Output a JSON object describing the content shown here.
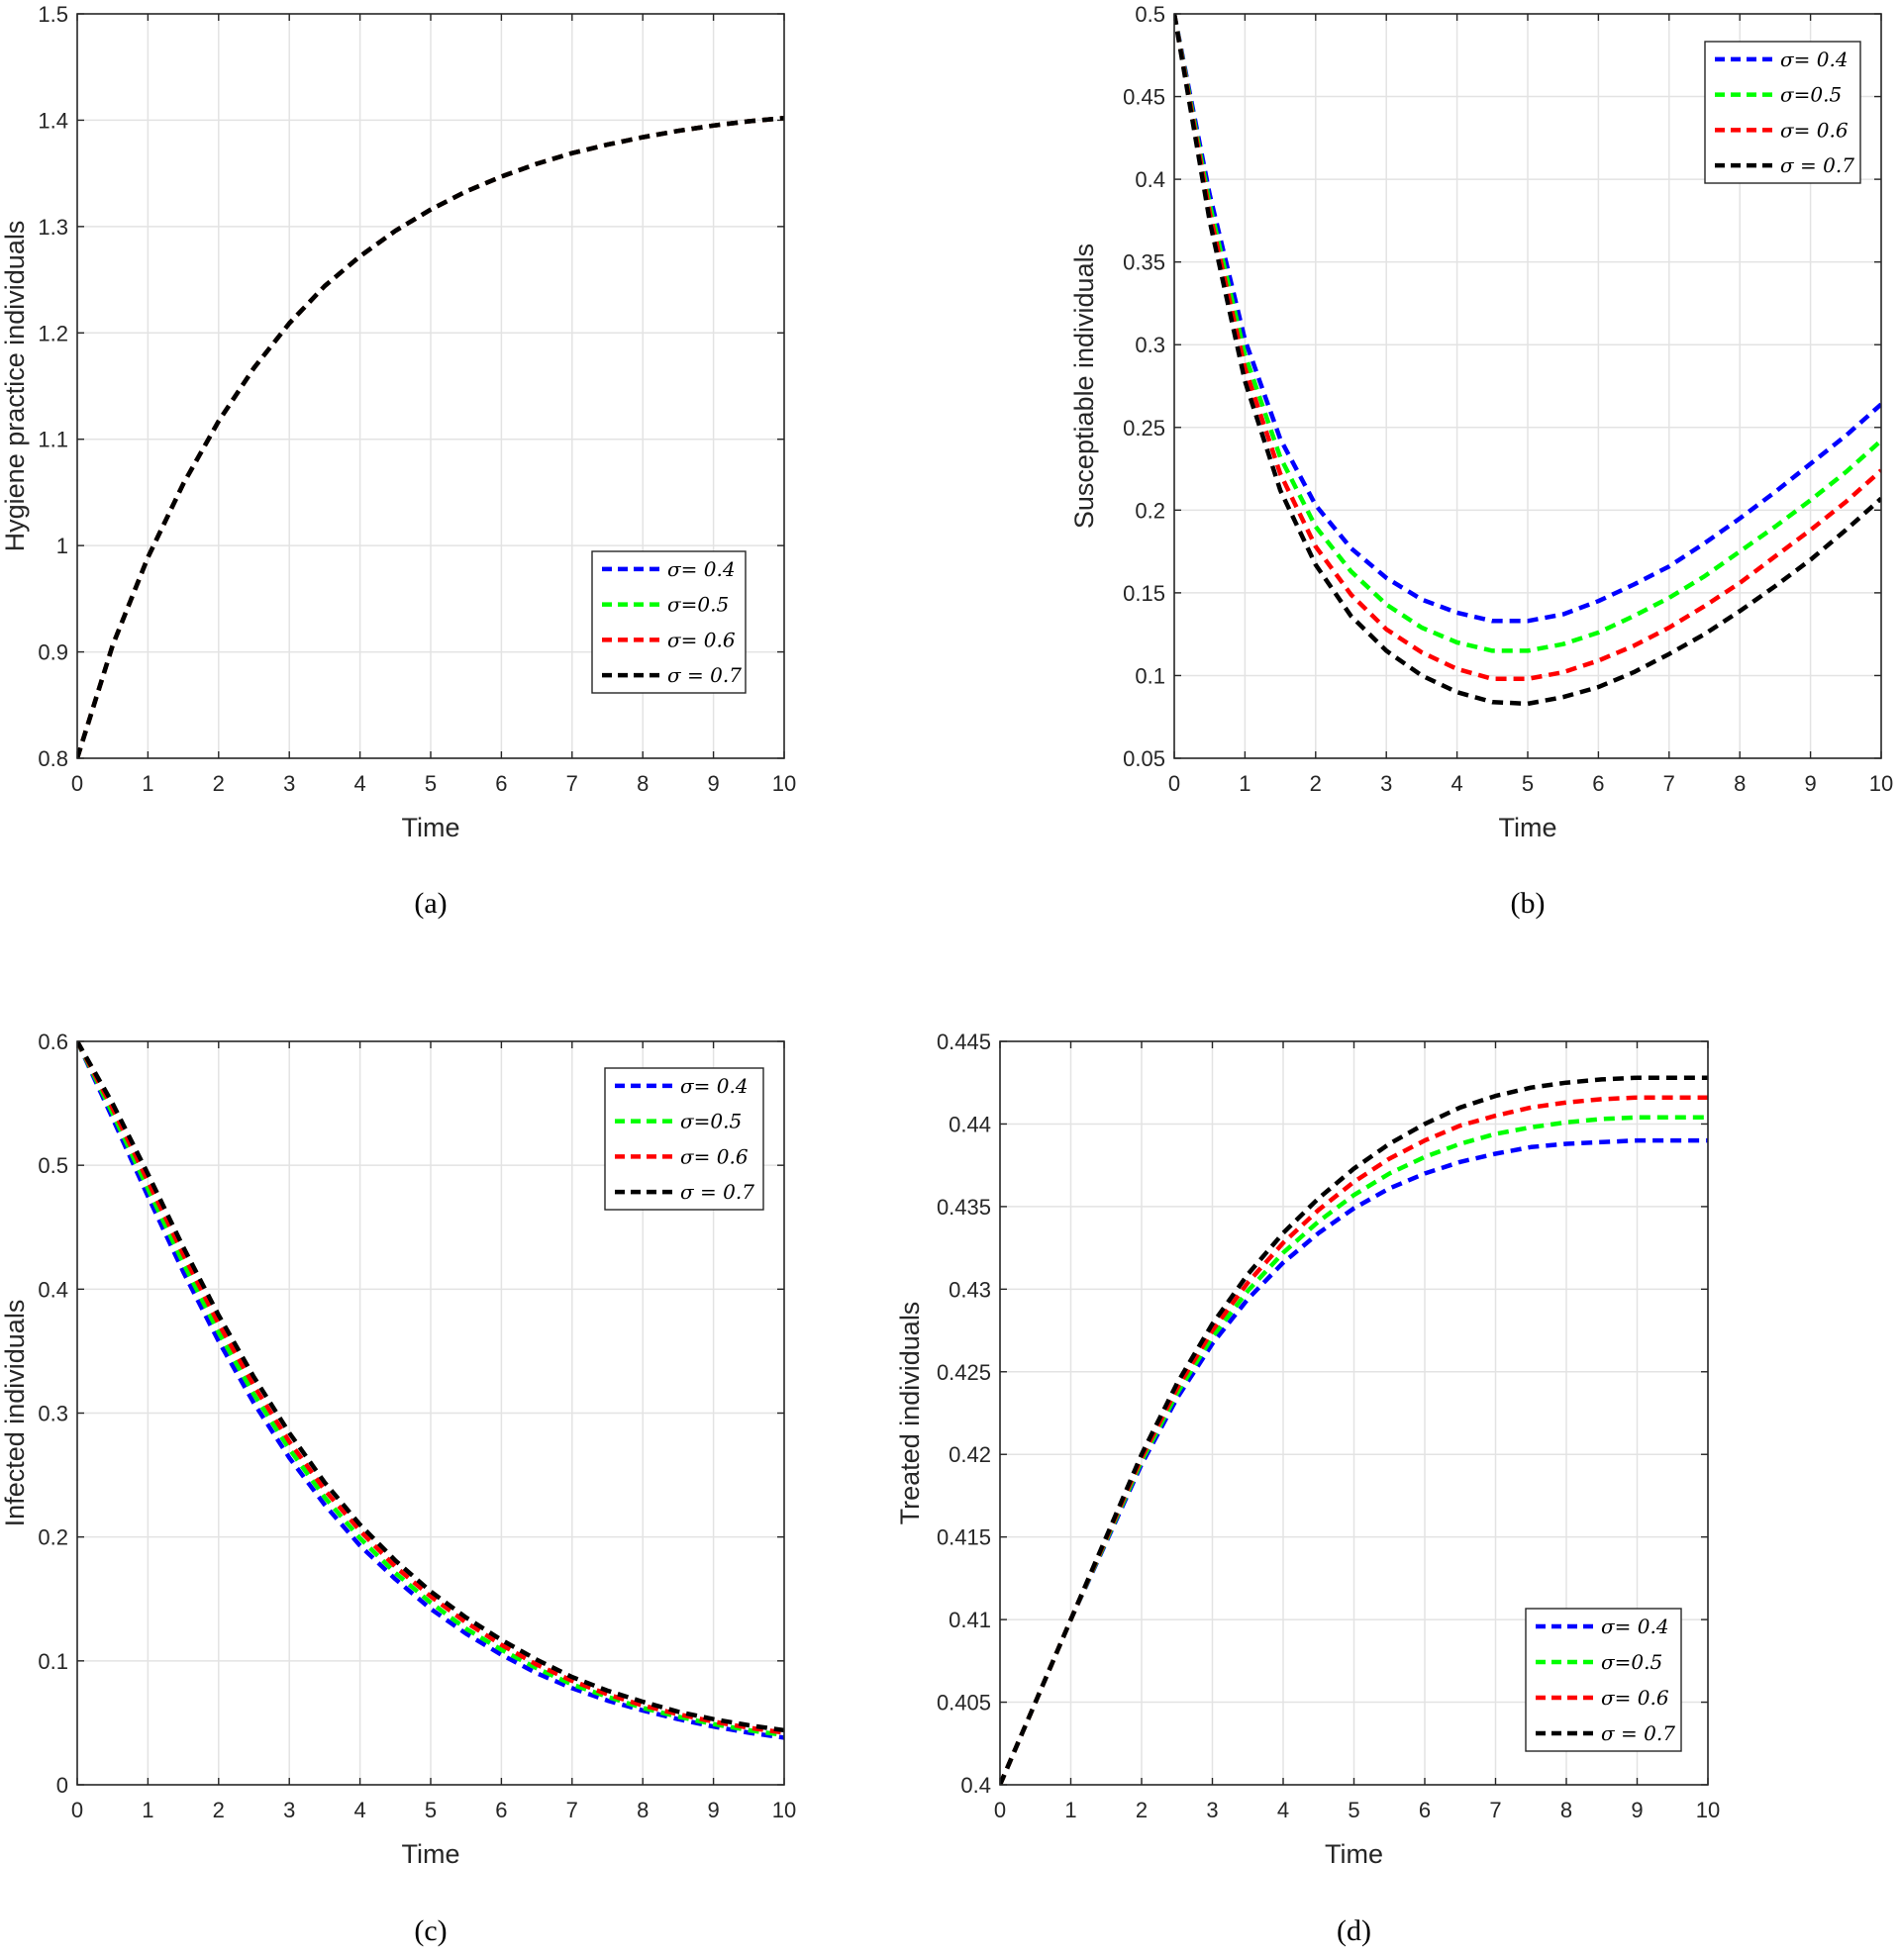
{
  "chart_data": [
    {
      "panel": "a",
      "type": "line",
      "caption": "(a)",
      "xlabel": "Time",
      "ylabel": "Hygiene practice individuals",
      "xlim": [
        0,
        10
      ],
      "ylim": [
        0.8,
        1.5
      ],
      "xticks": [
        "0",
        "1",
        "2",
        "3",
        "4",
        "5",
        "6",
        "7",
        "8",
        "9",
        "10"
      ],
      "yticks": [
        "0.8",
        "0.9",
        "1",
        "1.1",
        "1.2",
        "1.3",
        "1.4",
        "1.5"
      ],
      "grid": true,
      "legend_position": "right-middle",
      "x": [
        0,
        0.5,
        1,
        1.5,
        2,
        2.5,
        3,
        3.5,
        4,
        4.5,
        5,
        5.5,
        6,
        6.5,
        7,
        7.5,
        8,
        8.5,
        9,
        9.5,
        10
      ],
      "series": [
        {
          "name": "σ= 0.4",
          "color": "#0000ff",
          "values": [
            0.8,
            0.906,
            0.989,
            1.058,
            1.117,
            1.167,
            1.209,
            1.244,
            1.272,
            1.296,
            1.316,
            1.333,
            1.347,
            1.359,
            1.369,
            1.377,
            1.384,
            1.39,
            1.395,
            1.399,
            1.402
          ]
        },
        {
          "name": "σ=0.5",
          "color": "#00ff00",
          "values": [
            0.8,
            0.906,
            0.989,
            1.058,
            1.117,
            1.167,
            1.209,
            1.244,
            1.272,
            1.296,
            1.316,
            1.333,
            1.347,
            1.359,
            1.369,
            1.377,
            1.384,
            1.39,
            1.395,
            1.399,
            1.402
          ]
        },
        {
          "name": "σ= 0.6",
          "color": "#ff0000",
          "values": [
            0.8,
            0.906,
            0.989,
            1.058,
            1.117,
            1.167,
            1.209,
            1.244,
            1.272,
            1.296,
            1.316,
            1.333,
            1.347,
            1.359,
            1.369,
            1.377,
            1.384,
            1.39,
            1.395,
            1.399,
            1.402
          ]
        },
        {
          "name": "σ = 0.7",
          "color": "#000000",
          "values": [
            0.8,
            0.906,
            0.989,
            1.058,
            1.117,
            1.167,
            1.209,
            1.244,
            1.272,
            1.296,
            1.316,
            1.333,
            1.347,
            1.359,
            1.369,
            1.377,
            1.384,
            1.39,
            1.395,
            1.399,
            1.402
          ]
        }
      ]
    },
    {
      "panel": "b",
      "type": "line",
      "caption": "(b)",
      "xlabel": "Time",
      "ylabel": "Susceptiable individuals",
      "xlim": [
        0,
        10
      ],
      "ylim": [
        0.05,
        0.5
      ],
      "xticks": [
        "0",
        "1",
        "2",
        "3",
        "4",
        "5",
        "6",
        "7",
        "8",
        "9",
        "10"
      ],
      "yticks": [
        "0.05",
        "0.1",
        "0.15",
        "0.2",
        "0.25",
        "0.3",
        "0.35",
        "0.4",
        "0.45",
        "0.5"
      ],
      "grid": true,
      "legend_position": "top-right",
      "x": [
        0,
        0.5,
        1,
        1.5,
        2,
        2.5,
        3,
        3.5,
        4,
        4.5,
        5,
        5.5,
        6,
        6.5,
        7,
        7.5,
        8,
        8.5,
        9,
        9.5,
        10
      ],
      "series": [
        {
          "name": "σ= 0.4",
          "color": "#0000ff",
          "values": [
            0.5,
            0.391,
            0.303,
            0.243,
            0.203,
            0.177,
            0.159,
            0.146,
            0.138,
            0.133,
            0.133,
            0.137,
            0.145,
            0.155,
            0.166,
            0.18,
            0.195,
            0.211,
            0.228,
            0.245,
            0.264
          ]
        },
        {
          "name": "σ=0.5",
          "color": "#00ff00",
          "values": [
            0.5,
            0.385,
            0.294,
            0.232,
            0.19,
            0.163,
            0.143,
            0.129,
            0.12,
            0.115,
            0.115,
            0.119,
            0.126,
            0.136,
            0.147,
            0.16,
            0.175,
            0.19,
            0.206,
            0.223,
            0.242
          ]
        },
        {
          "name": "σ= 0.6",
          "color": "#ff0000",
          "values": [
            0.5,
            0.38,
            0.286,
            0.222,
            0.178,
            0.149,
            0.128,
            0.114,
            0.104,
            0.098,
            0.098,
            0.102,
            0.109,
            0.118,
            0.129,
            0.142,
            0.156,
            0.172,
            0.188,
            0.205,
            0.224
          ]
        },
        {
          "name": "σ = 0.7",
          "color": "#000000",
          "values": [
            0.5,
            0.375,
            0.278,
            0.212,
            0.167,
            0.136,
            0.115,
            0.1,
            0.09,
            0.084,
            0.083,
            0.087,
            0.093,
            0.102,
            0.113,
            0.125,
            0.139,
            0.154,
            0.17,
            0.188,
            0.207
          ]
        }
      ]
    },
    {
      "panel": "c",
      "type": "line",
      "caption": "(c)",
      "xlabel": "Time",
      "ylabel": "Infected individuals",
      "xlim": [
        0,
        10
      ],
      "ylim": [
        0,
        0.6
      ],
      "xticks": [
        "0",
        "1",
        "2",
        "3",
        "4",
        "5",
        "6",
        "7",
        "8",
        "9",
        "10"
      ],
      "yticks": [
        "0",
        "0.1",
        "0.2",
        "0.3",
        "0.4",
        "0.5",
        "0.6"
      ],
      "grid": true,
      "legend_position": "top-right",
      "x": [
        0,
        0.5,
        1,
        1.5,
        2,
        2.5,
        3,
        3.5,
        4,
        4.5,
        5,
        5.5,
        6,
        6.5,
        7,
        7.5,
        8,
        8.5,
        9,
        9.5,
        10
      ],
      "series": [
        {
          "name": "σ= 0.4",
          "color": "#0000ff",
          "values": [
            0.6,
            0.538,
            0.475,
            0.414,
            0.358,
            0.308,
            0.264,
            0.226,
            0.193,
            0.166,
            0.142,
            0.122,
            0.105,
            0.09,
            0.078,
            0.068,
            0.06,
            0.053,
            0.047,
            0.042,
            0.038
          ]
        },
        {
          "name": "σ=0.5",
          "color": "#00ff00",
          "values": [
            0.6,
            0.542,
            0.481,
            0.421,
            0.365,
            0.315,
            0.271,
            0.232,
            0.199,
            0.171,
            0.147,
            0.126,
            0.109,
            0.094,
            0.081,
            0.071,
            0.062,
            0.055,
            0.049,
            0.044,
            0.04
          ]
        },
        {
          "name": "σ= 0.6",
          "color": "#ff0000",
          "values": [
            0.6,
            0.546,
            0.487,
            0.428,
            0.372,
            0.322,
            0.277,
            0.238,
            0.205,
            0.176,
            0.152,
            0.131,
            0.113,
            0.097,
            0.084,
            0.073,
            0.064,
            0.057,
            0.051,
            0.046,
            0.042
          ]
        },
        {
          "name": "σ = 0.7",
          "color": "#000000",
          "values": [
            0.6,
            0.55,
            0.493,
            0.434,
            0.379,
            0.329,
            0.284,
            0.244,
            0.21,
            0.181,
            0.156,
            0.135,
            0.117,
            0.101,
            0.087,
            0.076,
            0.067,
            0.059,
            0.053,
            0.048,
            0.044
          ]
        }
      ]
    },
    {
      "panel": "d",
      "type": "line",
      "caption": "(d)",
      "xlabel": "Time",
      "ylabel": "Treated individuals",
      "xlim": [
        0,
        10
      ],
      "ylim": [
        0.4,
        0.445
      ],
      "xticks": [
        "0",
        "1",
        "2",
        "3",
        "4",
        "5",
        "6",
        "7",
        "8",
        "9",
        "10"
      ],
      "yticks": [
        "0.4",
        "0.405",
        "0.41",
        "0.415",
        "0.42",
        "0.425",
        "0.43",
        "0.435",
        "0.44",
        "0.445"
      ],
      "grid": true,
      "legend_position": "bottom-right",
      "x": [
        0,
        0.5,
        1,
        1.5,
        2,
        2.5,
        3,
        3.5,
        4,
        4.5,
        5,
        5.5,
        6,
        6.5,
        7,
        7.5,
        8,
        8.5,
        9,
        9.5,
        10
      ],
      "series": [
        {
          "name": "σ= 0.4",
          "color": "#0000ff",
          "values": [
            0.4,
            0.405,
            0.41,
            0.4147,
            0.4194,
            0.4234,
            0.4267,
            0.4294,
            0.4316,
            0.4334,
            0.4349,
            0.4361,
            0.437,
            0.4377,
            0.4382,
            0.4386,
            0.4388,
            0.4389,
            0.439,
            0.439,
            0.439
          ]
        },
        {
          "name": "σ=0.5",
          "color": "#00ff00",
          "values": [
            0.4,
            0.405,
            0.41,
            0.4148,
            0.4196,
            0.4237,
            0.4271,
            0.4299,
            0.4322,
            0.4341,
            0.4357,
            0.437,
            0.438,
            0.4388,
            0.4394,
            0.4398,
            0.4401,
            0.4403,
            0.4404,
            0.4404,
            0.4404
          ]
        },
        {
          "name": "σ= 0.6",
          "color": "#ff0000",
          "values": [
            0.4,
            0.405,
            0.41,
            0.4149,
            0.4198,
            0.424,
            0.4275,
            0.4304,
            0.4328,
            0.4348,
            0.4365,
            0.4379,
            0.439,
            0.4399,
            0.4405,
            0.441,
            0.4413,
            0.4415,
            0.4416,
            0.4416,
            0.4416
          ]
        },
        {
          "name": "σ = 0.7",
          "color": "#000000",
          "values": [
            0.4,
            0.405,
            0.41,
            0.415,
            0.42,
            0.4243,
            0.4279,
            0.4309,
            0.4334,
            0.4355,
            0.4373,
            0.4388,
            0.44,
            0.441,
            0.4417,
            0.4422,
            0.4425,
            0.4427,
            0.4428,
            0.4428,
            0.4428
          ]
        }
      ]
    }
  ]
}
